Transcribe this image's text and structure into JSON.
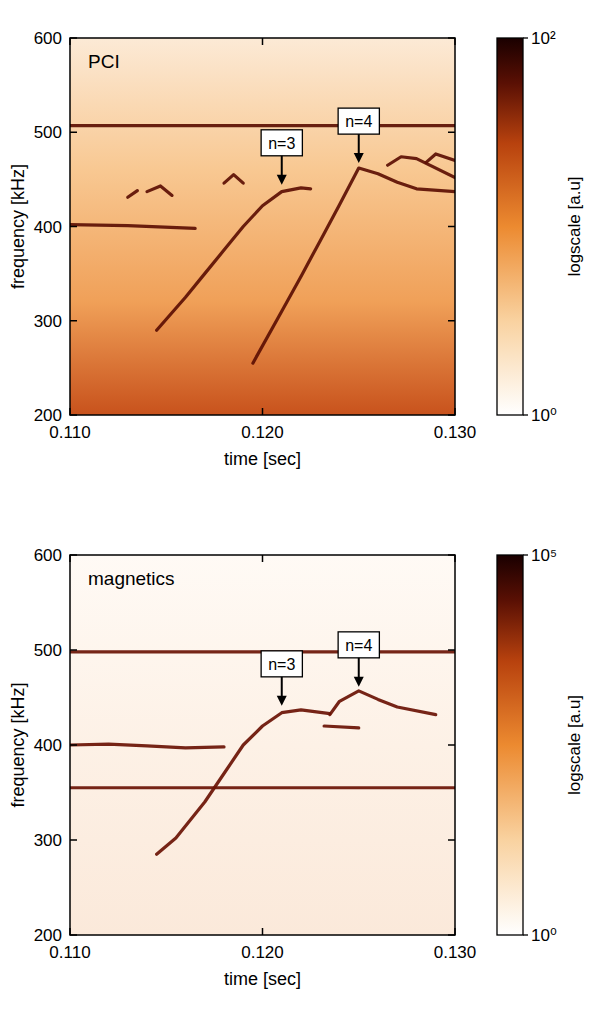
{
  "chart_data": [
    {
      "type": "spectrogram",
      "title": "PCI",
      "xlabel": "time [sec]",
      "ylabel": "frequency [kHz]",
      "xlim": [
        0.11,
        0.13
      ],
      "ylim": [
        200,
        600
      ],
      "xticks": [
        {
          "value": 0.11,
          "label": "0.110"
        },
        {
          "value": 0.12,
          "label": "0.120"
        },
        {
          "value": 0.13,
          "label": "0.130"
        }
      ],
      "yticks": [
        200,
        300,
        400,
        500,
        600
      ],
      "color": "#5c0f03",
      "series": [
        {
          "x": [
            0.11,
            0.13
          ],
          "values": [
            507,
            507
          ]
        },
        {
          "x": [
            0.11,
            0.113,
            0.1165
          ],
          "values": [
            402,
            401,
            398
          ]
        },
        {
          "x": [
            0.1145,
            0.116,
            0.117,
            0.118,
            0.119,
            0.12,
            0.121,
            0.122,
            0.1225
          ],
          "values": [
            290,
            325,
            350,
            375,
            400,
            422,
            437,
            441,
            440
          ]
        },
        {
          "x": [
            0.1195,
            0.121,
            0.122,
            0.123,
            0.124,
            0.125,
            0.126,
            0.127,
            0.128,
            0.13
          ],
          "values": [
            255,
            310,
            347,
            385,
            423,
            462,
            456,
            447,
            440,
            437
          ]
        },
        {
          "x": [
            0.113,
            0.1135
          ],
          "values": [
            431,
            438
          ]
        },
        {
          "x": [
            0.114,
            0.1147,
            0.1153
          ],
          "values": [
            437,
            443,
            433
          ]
        },
        {
          "x": [
            0.118,
            0.1185,
            0.119
          ],
          "values": [
            446,
            455,
            446
          ]
        },
        {
          "x": [
            0.1265,
            0.1272,
            0.128,
            0.13
          ],
          "values": [
            465,
            474,
            472,
            452
          ]
        },
        {
          "x": [
            0.1285,
            0.129,
            0.13
          ],
          "values": [
            468,
            477,
            470
          ]
        }
      ],
      "annotations": [
        {
          "text": "n=3",
          "x": 0.121,
          "y": 440
        },
        {
          "text": "n=4",
          "x": 0.125,
          "y": 463
        }
      ],
      "colorbar": {
        "label": "logscale [a.u]",
        "range": [
          1,
          100
        ],
        "ticks": [
          {
            "value": 1,
            "label": "10⁰"
          },
          {
            "value": 100,
            "label": "10²"
          }
        ]
      }
    },
    {
      "type": "spectrogram",
      "title": "magnetics",
      "xlabel": "time [sec]",
      "ylabel": "frequency [kHz]",
      "xlim": [
        0.11,
        0.13
      ],
      "ylim": [
        200,
        600
      ],
      "xticks": [
        {
          "value": 0.11,
          "label": "0.110"
        },
        {
          "value": 0.12,
          "label": "0.120"
        },
        {
          "value": 0.13,
          "label": "0.130"
        }
      ],
      "yticks": [
        200,
        300,
        400,
        500,
        600
      ],
      "color": "#6a1204",
      "series": [
        {
          "x": [
            0.11,
            0.13
          ],
          "values": [
            498,
            498
          ]
        },
        {
          "x": [
            0.11,
            0.13
          ],
          "values": [
            355,
            355
          ]
        },
        {
          "x": [
            0.11,
            0.112,
            0.114,
            0.116,
            0.118
          ],
          "values": [
            400,
            401,
            399,
            397,
            398
          ]
        },
        {
          "x": [
            0.1145,
            0.1155,
            0.117,
            0.118,
            0.119,
            0.12,
            0.121,
            0.122,
            0.1235
          ],
          "values": [
            285,
            302,
            340,
            370,
            400,
            420,
            434,
            437,
            433
          ]
        },
        {
          "x": [
            0.1232,
            0.125
          ],
          "values": [
            420,
            418
          ]
        },
        {
          "x": [
            0.1235,
            0.124,
            0.125,
            0.126,
            0.127,
            0.129
          ],
          "values": [
            432,
            446,
            457,
            448,
            440,
            432
          ]
        }
      ],
      "annotations": [
        {
          "text": "n=3",
          "x": 0.121,
          "y": 437
        },
        {
          "text": "n=4",
          "x": 0.125,
          "y": 457
        }
      ],
      "colorbar": {
        "label": "logscale [a.u]",
        "range": [
          1,
          100000
        ],
        "ticks": [
          {
            "value": 1,
            "label": "10⁰"
          },
          {
            "value": 100000,
            "label": "10⁵"
          }
        ]
      }
    }
  ]
}
